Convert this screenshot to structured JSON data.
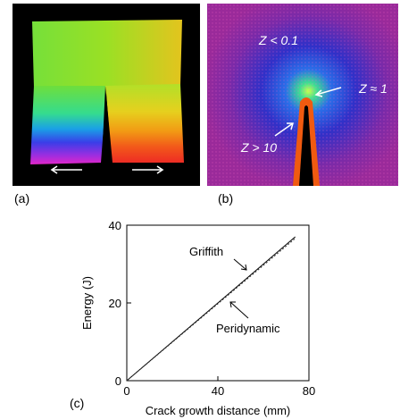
{
  "panels": {
    "a": {
      "label": "(a)"
    },
    "b": {
      "label": "(b)",
      "annotations": [
        "Z < 0.1",
        "Z ≈ 1",
        "Z > 10"
      ]
    },
    "c": {
      "label": "(c)"
    }
  },
  "chart_data": {
    "type": "line",
    "xlabel": "Crack growth distance (mm)",
    "ylabel": "Energy (J)",
    "xlim": [
      0,
      80
    ],
    "ylim": [
      0,
      40
    ],
    "xticks": [
      "0",
      "40",
      "80"
    ],
    "yticks": [
      "0",
      "20",
      "40"
    ],
    "series": [
      {
        "name": "Griffith",
        "x": [
          0,
          74
        ],
        "y": [
          0,
          37.0
        ]
      },
      {
        "name": "Peridynamic",
        "x": [
          0,
          74
        ],
        "y": [
          0,
          36.6
        ]
      }
    ],
    "annotations": [
      "Griffith",
      "Peridynamic"
    ]
  }
}
